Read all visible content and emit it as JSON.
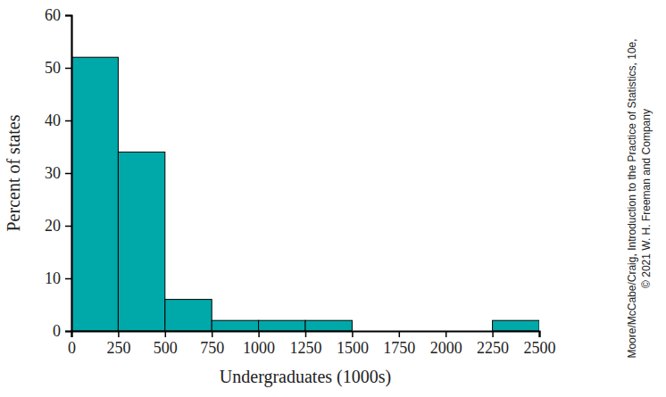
{
  "chart_data": {
    "type": "histogram",
    "bins": [
      0,
      250,
      500,
      750,
      1000,
      1250,
      1500,
      1750,
      2000,
      2250,
      2500
    ],
    "values": [
      52,
      34,
      6,
      2,
      2,
      2,
      0,
      0,
      0,
      2
    ],
    "color": "#00a9a9",
    "xlabel": "Undergraduates (1000s)",
    "ylabel": "Percent of states",
    "xlim": [
      0,
      2500
    ],
    "xticks": [
      0,
      250,
      500,
      750,
      1000,
      1250,
      1500,
      1750,
      2000,
      2250,
      2500
    ],
    "ylim": [
      0,
      60
    ],
    "yticks": [
      0,
      10,
      20,
      30,
      40,
      50,
      60
    ],
    "grid": false,
    "annotations": [
      "Moore/McCabe/Craig, Introduction to the Practice of Statistics, 10e,",
      "© 2021 W. H. Freeman and Company"
    ]
  }
}
